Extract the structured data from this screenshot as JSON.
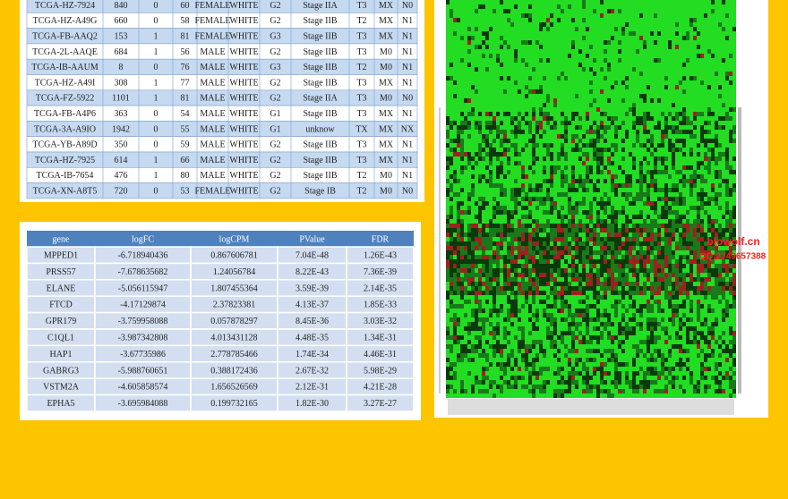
{
  "clinical_table": {
    "rows": [
      [
        "TCGA-HZ-7924",
        "840",
        "0",
        "60",
        "FEMALE",
        "WHITE",
        "G2",
        "Stage IIA",
        "T3",
        "MX",
        "N0"
      ],
      [
        "TCGA-HZ-A49G",
        "660",
        "0",
        "58",
        "FEMALE",
        "WHITE",
        "G2",
        "Stage IIB",
        "T2",
        "MX",
        "N1"
      ],
      [
        "TCGA-FB-AAQ2",
        "153",
        "1",
        "81",
        "FEMALE",
        "WHITE",
        "G3",
        "Stage IIB",
        "T3",
        "MX",
        "N1"
      ],
      [
        "TCGA-2L-AAQE",
        "684",
        "1",
        "56",
        "MALE",
        "WHITE",
        "G2",
        "Stage IIB",
        "T3",
        "M0",
        "N1"
      ],
      [
        "TCGA-IB-AAUM",
        "8",
        "0",
        "76",
        "MALE",
        "WHITE",
        "G3",
        "Stage IIB",
        "T2",
        "M0",
        "N1"
      ],
      [
        "TCGA-HZ-A49I",
        "308",
        "1",
        "77",
        "MALE",
        "WHITE",
        "G2",
        "Stage IIB",
        "T3",
        "MX",
        "N1"
      ],
      [
        "TCGA-FZ-5922",
        "1101",
        "1",
        "81",
        "MALE",
        "WHITE",
        "G2",
        "Stage IIA",
        "T3",
        "M0",
        "N0"
      ],
      [
        "TCGA-FB-A4P6",
        "363",
        "0",
        "54",
        "MALE",
        "WHITE",
        "G1",
        "Stage IIB",
        "T3",
        "MX",
        "N1"
      ],
      [
        "TCGA-3A-A9IO",
        "1942",
        "0",
        "55",
        "MALE",
        "WHITE",
        "G1",
        "unknow",
        "TX",
        "MX",
        "NX"
      ],
      [
        "TCGA-YB-A89D",
        "350",
        "0",
        "59",
        "MALE",
        "WHITE",
        "G2",
        "Stage IIB",
        "T3",
        "MX",
        "N1"
      ],
      [
        "TCGA-HZ-7925",
        "614",
        "1",
        "66",
        "MALE",
        "WHITE",
        "G2",
        "Stage IIB",
        "T3",
        "MX",
        "N1"
      ],
      [
        "TCGA-IB-7654",
        "476",
        "1",
        "80",
        "MALE",
        "WHITE",
        "G2",
        "Stage IIB",
        "T2",
        "M0",
        "N1"
      ],
      [
        "TCGA-XN-A8T5",
        "720",
        "0",
        "53",
        "FEMALE",
        "WHITE",
        "G2",
        "Stage IB",
        "T2",
        "M0",
        "N0"
      ]
    ]
  },
  "deg_table": {
    "header": [
      "gene",
      "logFC",
      "logCPM",
      "PValue",
      "FDR"
    ],
    "rows": [
      [
        "MPPED1",
        "-6.718940436",
        "0.867606781",
        "7.04E-48",
        "1.26E-43"
      ],
      [
        "PRSS57",
        "-7.678635682",
        "1.24056784",
        "8.22E-43",
        "7.36E-39"
      ],
      [
        "ELANE",
        "-5.056115947",
        "1.807455364",
        "3.59E-39",
        "2.14E-35"
      ],
      [
        "FTCD",
        "-4.17129874",
        "2.37823381",
        "4.13E-37",
        "1.85E-33"
      ],
      [
        "GPR179",
        "-3.759958088",
        "0.057878297",
        "8.45E-36",
        "3.03E-32"
      ],
      [
        "C1QL1",
        "-3.987342808",
        "4.013431128",
        "4.48E-35",
        "1.34E-31"
      ],
      [
        "HAP1",
        "-3.67735986",
        "2.778785466",
        "1.74E-34",
        "4.46E-31"
      ],
      [
        "GABRG3",
        "-5.988760651",
        "0.388172436",
        "2.67E-32",
        "5.98E-29"
      ],
      [
        "VSTM2A",
        "-4.605858574",
        "1.656526569",
        "2.12E-31",
        "4.21E-28"
      ],
      [
        "EPHA5",
        "-3.695984088",
        "0.199732165",
        "1.82E-30",
        "3.27E-27"
      ]
    ]
  },
  "watermark": {
    "site": "blowolf.cn",
    "qq": "QQ:2749657388"
  }
}
